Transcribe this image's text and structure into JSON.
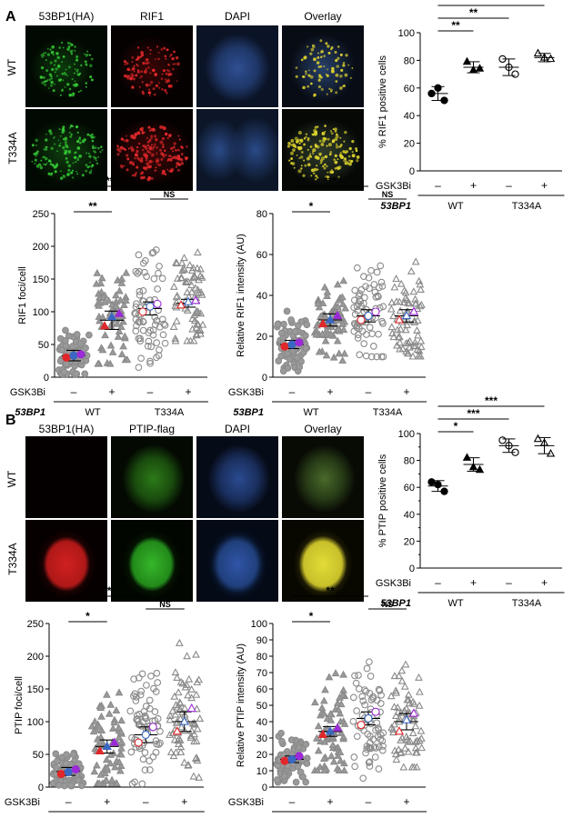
{
  "panels": {
    "A": {
      "letter": "A",
      "image_columns": [
        "53BP1(HA)",
        "RIF1",
        "DAPI",
        "Overlay"
      ],
      "image_rows": [
        "WT",
        "T334A"
      ]
    },
    "B": {
      "letter": "B",
      "image_columns": [
        "53BP1(HA)",
        "PTIP-flag",
        "DAPI",
        "Overlay"
      ],
      "image_rows": [
        "WT",
        "T334A"
      ]
    }
  },
  "colors": {
    "green": "#35c935",
    "red": "#e0282a",
    "blue": "#3a67c2",
    "yellow": "#e0d52e",
    "purple": "#9b2bd6",
    "gray": "#8a8a8a"
  },
  "chart_data": [
    {
      "id": "A_percent",
      "type": "scatter",
      "ylabel": "% RIF1 positive cells",
      "ylim": [
        0,
        100
      ],
      "yticks": [
        0,
        20,
        40,
        60,
        80,
        100
      ],
      "row1_label": "GSK3Bi",
      "row1": [
        "–",
        "+",
        "–",
        "+"
      ],
      "row2_label": "53BP1",
      "groups": [
        "WT",
        "T334A"
      ],
      "conditions": [
        {
          "marker": "circle-filled",
          "points": [
            56,
            60,
            51
          ],
          "mean": 56
        },
        {
          "marker": "triangle-filled",
          "points": [
            79,
            73,
            74
          ],
          "mean": 75
        },
        {
          "marker": "circle-open",
          "points": [
            81,
            75,
            70
          ],
          "mean": 75
        },
        {
          "marker": "triangle-open",
          "points": [
            85,
            82,
            81
          ],
          "mean": 82
        }
      ],
      "significance": [
        {
          "from": 0,
          "to": 3,
          "label": "***"
        },
        {
          "from": 0,
          "to": 2,
          "label": "**"
        },
        {
          "from": 0,
          "to": 1,
          "label": "**"
        }
      ]
    },
    {
      "id": "A_foci",
      "type": "scatter",
      "ylabel": "RIF1 foci/cell",
      "ylim": [
        0,
        250
      ],
      "yticks": [
        0,
        50,
        100,
        150,
        200,
        250
      ],
      "row1_label": "GSK3Bi",
      "row1": [
        "–",
        "+",
        "–",
        "+"
      ],
      "row2_label": "53BP1",
      "groups": [
        "WT",
        "T334A"
      ],
      "conditions": [
        {
          "marker": "circle-filled",
          "mean": 33,
          "sem": 8,
          "cloud_range": [
            5,
            85
          ],
          "reps": [
            30,
            33,
            35
          ]
        },
        {
          "marker": "triangle-filled",
          "mean": 87,
          "sem": 14,
          "cloud_range": [
            20,
            195
          ],
          "reps": [
            78,
            92,
            97
          ]
        },
        {
          "marker": "circle-open",
          "mean": 105,
          "sem": 10,
          "cloud_range": [
            15,
            200
          ],
          "reps": [
            100,
            108,
            112
          ]
        },
        {
          "marker": "triangle-open",
          "mean": 113,
          "sem": 6,
          "cloud_range": [
            55,
            205
          ],
          "reps": [
            110,
            115,
            117
          ]
        }
      ],
      "significance": [
        {
          "from": 0,
          "to": 2,
          "label": "***"
        },
        {
          "from": 2,
          "to": 3,
          "label": "NS"
        },
        {
          "from": 0,
          "to": 1,
          "label": "**"
        }
      ]
    },
    {
      "id": "A_intensity",
      "type": "scatter",
      "ylabel": "Relative RIF1 intensity (AU)",
      "ylim": [
        0,
        80
      ],
      "yticks": [
        0,
        20,
        40,
        60,
        80
      ],
      "row1_label": "GSK3Bi",
      "row1": [
        "–",
        "+",
        "–",
        "+"
      ],
      "row2_label": "53BP1",
      "groups": [
        "WT",
        "T334A"
      ],
      "conditions": [
        {
          "marker": "circle-filled",
          "mean": 16,
          "sem": 2,
          "cloud_range": [
            3,
            36
          ],
          "reps": [
            15,
            16,
            17
          ]
        },
        {
          "marker": "triangle-filled",
          "mean": 28,
          "sem": 3,
          "cloud_range": [
            8,
            48
          ],
          "reps": [
            26,
            28,
            30
          ]
        },
        {
          "marker": "circle-open",
          "mean": 30,
          "sem": 3,
          "cloud_range": [
            10,
            62
          ],
          "reps": [
            28,
            30,
            32
          ]
        },
        {
          "marker": "triangle-open",
          "mean": 30,
          "sem": 3,
          "cloud_range": [
            10,
            62
          ],
          "reps": [
            28,
            30,
            32
          ]
        }
      ],
      "significance": [
        {
          "from": 0,
          "to": 2,
          "label": "***"
        },
        {
          "from": 2,
          "to": 3,
          "label": "NS"
        },
        {
          "from": 0,
          "to": 1,
          "label": "*"
        }
      ]
    },
    {
      "id": "B_percent",
      "type": "scatter",
      "ylabel": "% PTIP positive cells",
      "ylim": [
        0,
        100
      ],
      "yticks": [
        0,
        10,
        20,
        30,
        40,
        50,
        60,
        70,
        80,
        90,
        100
      ],
      "ytick_labels": [
        0,
        20,
        40,
        60,
        80,
        100
      ],
      "row1_label": "GSK3Bi",
      "row1": [
        "–",
        "+",
        "–",
        "+"
      ],
      "row2_label": "53BP1",
      "groups": [
        "WT",
        "T334A"
      ],
      "conditions": [
        {
          "marker": "circle-filled",
          "points": [
            64,
            62,
            57
          ],
          "mean": 61
        },
        {
          "marker": "triangle-filled",
          "points": [
            82,
            75,
            73
          ],
          "mean": 77
        },
        {
          "marker": "circle-open",
          "points": [
            95,
            91,
            86
          ],
          "mean": 91
        },
        {
          "marker": "triangle-open",
          "points": [
            96,
            93,
            85
          ],
          "mean": 91
        }
      ],
      "significance": [
        {
          "from": 0,
          "to": 3,
          "label": "***"
        },
        {
          "from": 0,
          "to": 2,
          "label": "***"
        },
        {
          "from": 0,
          "to": 1,
          "label": "*"
        }
      ]
    },
    {
      "id": "B_foci",
      "type": "scatter",
      "ylabel": "PTIP foci/cell",
      "ylim": [
        0,
        250
      ],
      "yticks": [
        0,
        50,
        100,
        150,
        200,
        250
      ],
      "row1_label": "GSK3Bi",
      "row1": [
        "–",
        "+",
        "–",
        "+"
      ],
      "row2_label": "53BP1",
      "groups": [
        "WT",
        "T334A"
      ],
      "conditions": [
        {
          "marker": "circle-filled",
          "mean": 24,
          "sem": 6,
          "cloud_range": [
            2,
            65
          ],
          "reps": [
            20,
            23,
            27
          ]
        },
        {
          "marker": "triangle-filled",
          "mean": 62,
          "sem": 10,
          "cloud_range": [
            5,
            205
          ],
          "reps": [
            55,
            62,
            68
          ]
        },
        {
          "marker": "circle-open",
          "mean": 80,
          "sem": 12,
          "cloud_range": [
            5,
            200
          ],
          "reps": [
            68,
            80,
            92
          ]
        },
        {
          "marker": "triangle-open",
          "mean": 100,
          "sem": 15,
          "cloud_range": [
            5,
            230
          ],
          "reps": [
            85,
            100,
            120
          ]
        }
      ],
      "significance": [
        {
          "from": 0,
          "to": 2,
          "label": "**"
        },
        {
          "from": 2,
          "to": 3,
          "label": "NS"
        },
        {
          "from": 0,
          "to": 1,
          "label": "*"
        }
      ]
    },
    {
      "id": "B_intensity",
      "type": "scatter",
      "ylabel": "Relative PTIP intensity (AU)",
      "ylim": [
        0,
        100
      ],
      "yticks": [
        0,
        10,
        20,
        30,
        40,
        50,
        60,
        70,
        80,
        90,
        100
      ],
      "row1_label": "GSK3Bi",
      "row1": [
        "–",
        "+",
        "–",
        "+"
      ],
      "row2_label": "53BP1",
      "groups": [
        "WT",
        "T334A"
      ],
      "conditions": [
        {
          "marker": "circle-filled",
          "mean": 17,
          "sem": 2,
          "cloud_range": [
            3,
            38
          ],
          "reps": [
            16,
            17,
            19
          ]
        },
        {
          "marker": "triangle-filled",
          "mean": 34,
          "sem": 3,
          "cloud_range": [
            10,
            80
          ],
          "reps": [
            32,
            34,
            36
          ]
        },
        {
          "marker": "circle-open",
          "mean": 42,
          "sem": 4,
          "cloud_range": [
            5,
            80
          ],
          "reps": [
            38,
            42,
            46
          ]
        },
        {
          "marker": "triangle-open",
          "mean": 40,
          "sem": 5,
          "cloud_range": [
            12,
            80
          ],
          "reps": [
            34,
            41,
            45
          ]
        }
      ],
      "significance": [
        {
          "from": 0,
          "to": 2,
          "label": "**"
        },
        {
          "from": 2,
          "to": 3,
          "label": "NS"
        },
        {
          "from": 0,
          "to": 1,
          "label": "*"
        }
      ]
    }
  ]
}
